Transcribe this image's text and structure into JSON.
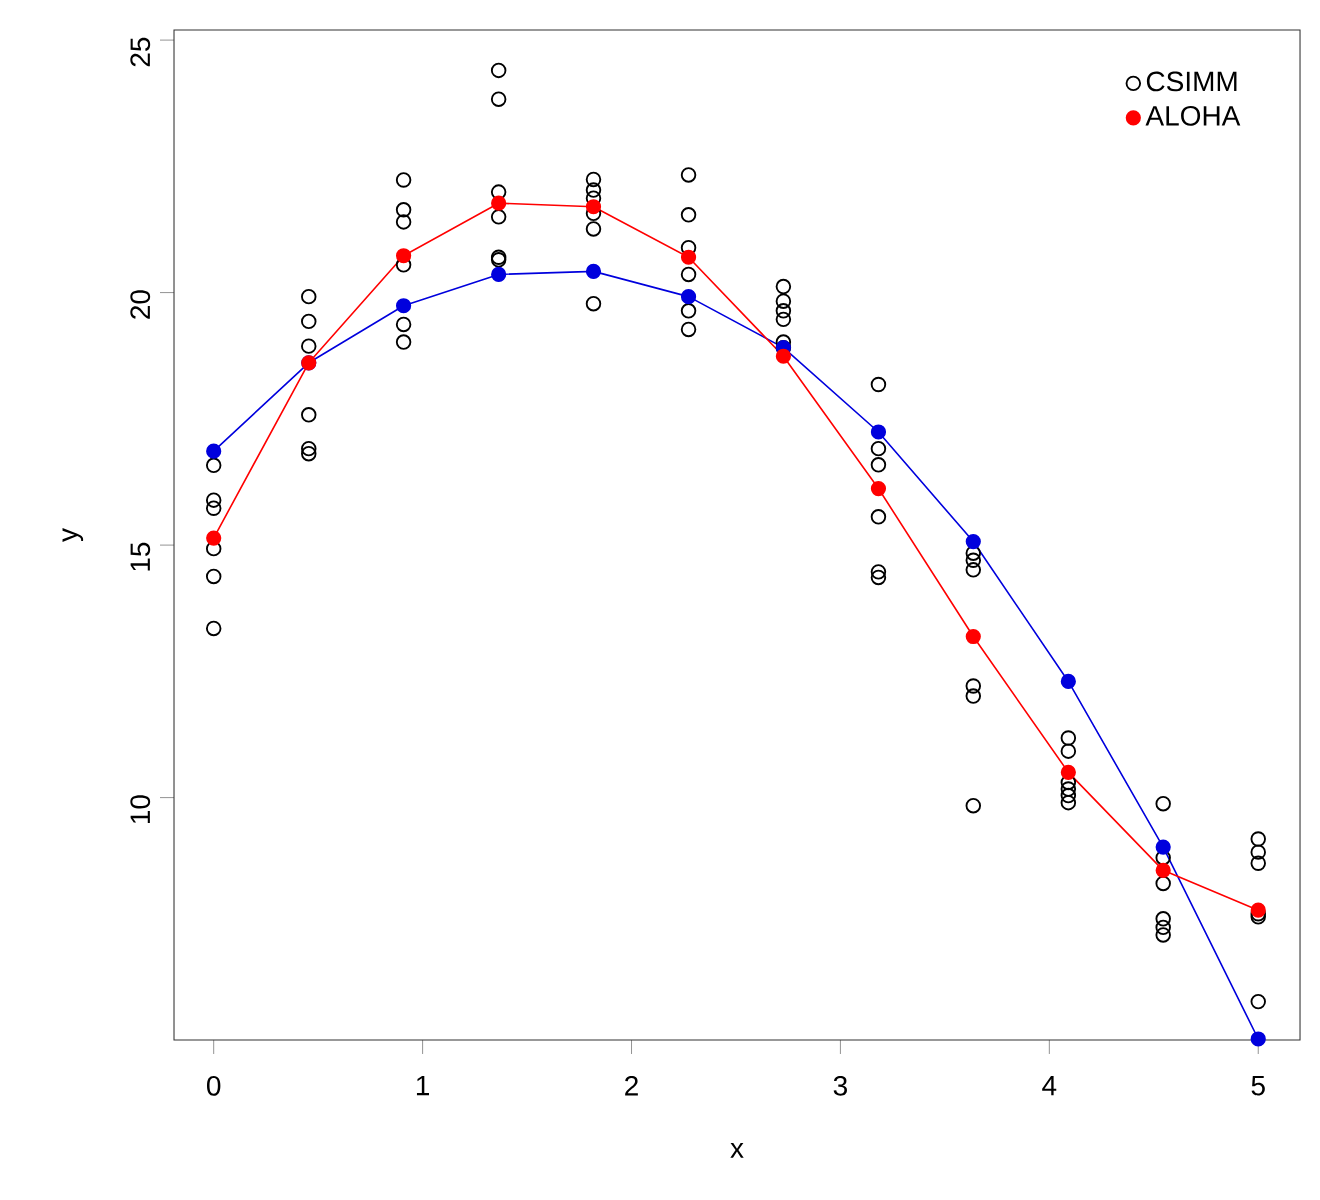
{
  "chart_data": {
    "type": "line",
    "xlabel": "x",
    "ylabel": "y",
    "x": [
      0,
      0.455,
      0.909,
      1.364,
      1.818,
      2.273,
      2.727,
      3.182,
      3.636,
      4.091,
      4.545,
      5
    ],
    "xlim": [
      -0.19,
      5.2
    ],
    "ylim": [
      5.2,
      25.2
    ],
    "xticks": [
      0,
      1,
      2,
      3,
      4,
      5
    ],
    "yticks": [
      10,
      15,
      20,
      25
    ],
    "legend": "top right",
    "marker": "circle",
    "grid": false,
    "series": [
      {
        "name": "CSIMM",
        "type": "scatter",
        "color": "#000000",
        "x": [
          0,
          0,
          0,
          0,
          0,
          0,
          0.455,
          0.455,
          0.455,
          0.455,
          0.455,
          0.455,
          0.909,
          0.909,
          0.909,
          0.909,
          0.909,
          0.909,
          1.364,
          1.364,
          1.364,
          1.364,
          1.364,
          1.364,
          1.818,
          1.818,
          1.818,
          1.818,
          1.818,
          1.818,
          2.273,
          2.273,
          2.273,
          2.273,
          2.273,
          2.273,
          2.727,
          2.727,
          2.727,
          2.727,
          2.727,
          2.727,
          3.182,
          3.182,
          3.182,
          3.182,
          3.182,
          3.182,
          3.636,
          3.636,
          3.636,
          3.636,
          3.636,
          3.636,
          4.091,
          4.091,
          4.091,
          4.091,
          4.091,
          4.091,
          4.545,
          4.545,
          4.545,
          4.545,
          4.545,
          4.545,
          5,
          5,
          5,
          5,
          5,
          5
        ],
        "values": [
          16.58,
          15.89,
          15.73,
          14.93,
          14.38,
          13.35,
          19.92,
          19.43,
          18.94,
          17.58,
          16.91,
          16.81,
          22.23,
          21.64,
          21.4,
          20.55,
          19.37,
          19.02,
          24.4,
          23.83,
          21.99,
          21.5,
          20.7,
          20.65,
          22.24,
          22.03,
          21.87,
          21.57,
          21.26,
          19.78,
          22.33,
          21.54,
          20.89,
          20.36,
          19.64,
          19.27,
          20.12,
          19.83,
          19.64,
          19.47,
          19.02,
          18.91,
          18.18,
          16.91,
          16.59,
          15.56,
          14.47,
          14.36,
          14.84,
          14.7,
          14.51,
          12.21,
          12.01,
          9.84,
          11.18,
          10.92,
          10.3,
          10.17,
          10.04,
          9.9,
          9.88,
          8.81,
          8.3,
          7.6,
          7.43,
          7.28,
          9.18,
          8.92,
          8.7,
          7.7,
          7.64,
          5.96
        ]
      },
      {
        "name": "ALOHA",
        "color": "#ff0000",
        "values": [
          15.14,
          18.61,
          20.73,
          21.77,
          21.7,
          20.7,
          18.74,
          16.12,
          13.19,
          10.5,
          8.56,
          7.77
        ]
      },
      {
        "color": "#0000dd",
        "values": [
          16.86,
          18.61,
          19.74,
          20.36,
          20.42,
          19.92,
          18.91,
          17.24,
          15.07,
          12.3,
          9.02,
          5.22
        ]
      }
    ]
  }
}
